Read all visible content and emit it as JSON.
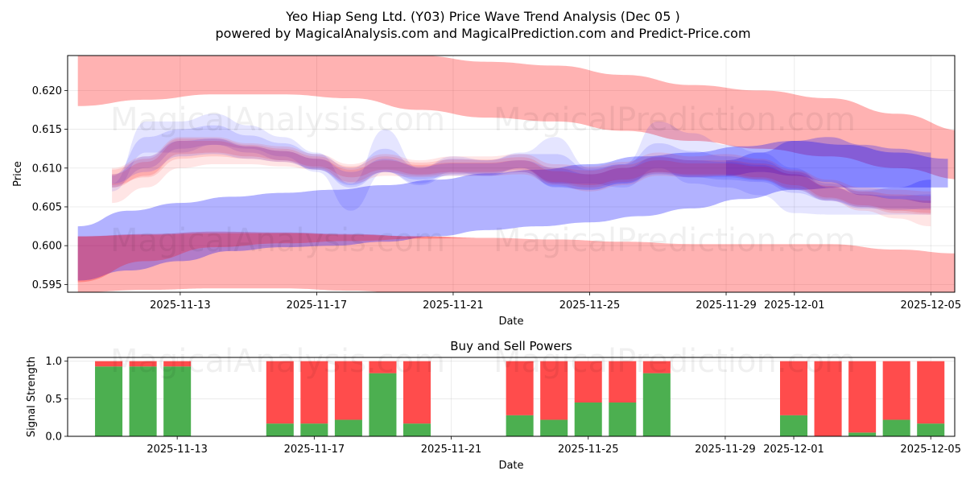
{
  "title_line1": "Yeo Hiap Seng Ltd. (Y03) Price Wave Trend Analysis (Dec 05 )",
  "title_line2": "powered by MagicalAnalysis.com and MagicalPrediction.com and Predict-Price.com",
  "watermarks": [
    "MagicalAnalysis.com",
    "MagicalPrediction.com"
  ],
  "colors": {
    "red": "#ff0000",
    "blue": "#0000ff",
    "buy": "#4caf50",
    "sell": "#ff4c4c"
  },
  "chart_data": [
    {
      "type": "area",
      "title": "",
      "xlabel": "Date",
      "ylabel": "Price",
      "x_range": [
        -1.3,
        24.7
      ],
      "ylim": [
        0.594,
        0.6245
      ],
      "x_ticks": [
        {
          "pos": 2,
          "label": "2025-11-13"
        },
        {
          "pos": 6,
          "label": "2025-11-17"
        },
        {
          "pos": 10,
          "label": "2025-11-21"
        },
        {
          "pos": 14,
          "label": "2025-11-25"
        },
        {
          "pos": 18,
          "label": "2025-11-29"
        },
        {
          "pos": 20,
          "label": "2025-12-01"
        },
        {
          "pos": 24,
          "label": "2025-12-05"
        }
      ],
      "y_ticks": [
        0.595,
        0.6,
        0.605,
        0.61,
        0.615,
        0.62
      ],
      "y_tick_labels": [
        "0.595",
        "0.600",
        "0.605",
        "0.610",
        "0.615",
        "0.620"
      ],
      "grid": true,
      "bands": [
        {
          "color": "red",
          "opacity": 0.3,
          "x": [
            -1,
            1,
            3,
            5,
            7,
            9,
            11,
            13,
            15,
            17,
            19,
            21,
            23,
            25
          ],
          "lower": [
            0.618,
            0.6188,
            0.6195,
            0.6195,
            0.619,
            0.6175,
            0.6165,
            0.616,
            0.6148,
            0.6135,
            0.6125,
            0.6115,
            0.61,
            0.6085
          ],
          "upper": [
            0.6255,
            0.6255,
            0.6255,
            0.6255,
            0.6252,
            0.6245,
            0.6237,
            0.6232,
            0.622,
            0.6207,
            0.62,
            0.619,
            0.617,
            0.6148
          ]
        },
        {
          "color": "red",
          "opacity": 0.3,
          "x": [
            -1,
            1,
            3,
            5,
            7,
            9,
            11,
            13,
            15,
            17,
            19,
            21,
            23,
            24.8
          ],
          "lower": [
            0.594,
            0.5943,
            0.5945,
            0.5945,
            0.5942,
            0.5937,
            0.5935,
            0.5935,
            0.5935,
            0.5935,
            0.5935,
            0.5935,
            0.5935,
            0.5935
          ],
          "upper": [
            0.6012,
            0.6015,
            0.6018,
            0.6017,
            0.6015,
            0.6012,
            0.601,
            0.6008,
            0.6005,
            0.6002,
            0.6002,
            0.6002,
            0.5995,
            0.599
          ]
        },
        {
          "color": "blue",
          "opacity": 0.3,
          "x": [
            -1,
            0.5,
            2,
            3.5,
            5,
            6.5,
            8,
            9.5,
            11,
            12.5,
            14,
            15.5,
            17,
            18.5,
            20,
            21.5,
            23,
            24.5
          ],
          "lower": [
            0.5955,
            0.5968,
            0.598,
            0.5993,
            0.5998,
            0.6,
            0.6005,
            0.6012,
            0.602,
            0.6025,
            0.603,
            0.6038,
            0.6048,
            0.606,
            0.6072,
            0.6075,
            0.6075,
            0.6075
          ],
          "upper": [
            0.6025,
            0.6045,
            0.6055,
            0.6063,
            0.6068,
            0.6072,
            0.6078,
            0.6085,
            0.6093,
            0.6098,
            0.6105,
            0.6115,
            0.612,
            0.6128,
            0.6135,
            0.613,
            0.612,
            0.6112
          ]
        },
        {
          "color": "red",
          "opacity": 0.25,
          "x": [
            -1,
            1,
            3,
            5,
            7,
            9,
            11
          ],
          "lower": [
            0.5953,
            0.598,
            0.5998,
            0.6003,
            0.6006,
            0.6009,
            0.601
          ],
          "upper": [
            0.6012,
            0.6014,
            0.6016,
            0.6016,
            0.6014,
            0.6012,
            0.601
          ]
        },
        {
          "color": "blue",
          "opacity": 0.25,
          "x": [
            18,
            19,
            20,
            21,
            22,
            23,
            24
          ],
          "lower": [
            0.609,
            0.6095,
            0.609,
            0.6082,
            0.6065,
            0.606,
            0.6055
          ],
          "upper": [
            0.611,
            0.612,
            0.6135,
            0.614,
            0.613,
            0.6125,
            0.612
          ]
        }
      ],
      "waves": [
        {
          "color": "blue",
          "opacity": 0.1,
          "x": [
            0,
            1,
            2,
            3,
            4,
            5,
            6,
            7,
            8,
            9,
            10,
            11,
            12,
            13,
            14,
            15,
            16,
            17,
            18,
            19,
            20,
            21,
            22,
            23,
            24
          ],
          "lower": [
            0.607,
            0.612,
            0.612,
            0.613,
            0.6125,
            0.6115,
            0.6095,
            0.6045,
            0.6095,
            0.608,
            0.6095,
            0.609,
            0.61,
            0.608,
            0.608,
            0.6075,
            0.61,
            0.608,
            0.6075,
            0.6065,
            0.6042,
            0.604,
            0.604,
            0.604,
            0.604
          ],
          "upper": [
            0.608,
            0.616,
            0.616,
            0.617,
            0.6155,
            0.614,
            0.612,
            0.608,
            0.615,
            0.61,
            0.6115,
            0.611,
            0.612,
            0.614,
            0.61,
            0.6105,
            0.616,
            0.6145,
            0.613,
            0.612,
            0.61,
            0.6075,
            0.607,
            0.6075,
            0.6085
          ]
        },
        {
          "color": "blue",
          "opacity": 0.12,
          "x": [
            0,
            1,
            2,
            3,
            4,
            5,
            6,
            7,
            8,
            9,
            10,
            11,
            12,
            13,
            14,
            15,
            16,
            17,
            18,
            19,
            20,
            21,
            22,
            23,
            24
          ],
          "lower": [
            0.6075,
            0.61,
            0.6125,
            0.613,
            0.612,
            0.611,
            0.6098,
            0.6075,
            0.6095,
            0.6078,
            0.6092,
            0.6092,
            0.61,
            0.6075,
            0.6072,
            0.608,
            0.6095,
            0.6088,
            0.6085,
            0.6082,
            0.6068,
            0.6058,
            0.605,
            0.6048,
            0.6046
          ],
          "upper": [
            0.609,
            0.614,
            0.615,
            0.6155,
            0.6142,
            0.6132,
            0.6118,
            0.61,
            0.6125,
            0.61,
            0.6112,
            0.611,
            0.6118,
            0.6118,
            0.6098,
            0.6105,
            0.6132,
            0.6122,
            0.6115,
            0.611,
            0.6095,
            0.608,
            0.6072,
            0.6075,
            0.6085
          ]
        },
        {
          "color": "red",
          "opacity": 0.1,
          "x": [
            0,
            1,
            2,
            3,
            4,
            5,
            6,
            7,
            8,
            9,
            10,
            11,
            12,
            13,
            14,
            15,
            16,
            17,
            18,
            19,
            20,
            21,
            22,
            23,
            24
          ],
          "lower": [
            0.6055,
            0.6075,
            0.61,
            0.6105,
            0.6105,
            0.6102,
            0.6098,
            0.608,
            0.609,
            0.6088,
            0.609,
            0.609,
            0.6092,
            0.6078,
            0.607,
            0.6078,
            0.609,
            0.6088,
            0.609,
            0.6085,
            0.6072,
            0.6058,
            0.6045,
            0.6035,
            0.6025
          ],
          "upper": [
            0.61,
            0.6115,
            0.614,
            0.614,
            0.6132,
            0.6128,
            0.6118,
            0.6105,
            0.6118,
            0.611,
            0.6115,
            0.6115,
            0.6118,
            0.6105,
            0.6102,
            0.6108,
            0.612,
            0.6115,
            0.6118,
            0.6112,
            0.6098,
            0.6085,
            0.6075,
            0.6072,
            0.607
          ]
        },
        {
          "color": "red",
          "opacity": 0.14,
          "x": [
            0,
            1,
            2,
            3,
            4,
            5,
            6,
            7,
            8,
            9,
            10,
            11,
            12,
            13,
            14,
            15,
            16,
            17,
            18,
            19,
            20,
            21,
            22,
            23,
            24
          ],
          "lower": [
            0.6075,
            0.609,
            0.6118,
            0.612,
            0.6115,
            0.611,
            0.6102,
            0.6088,
            0.6098,
            0.6092,
            0.6095,
            0.6095,
            0.6098,
            0.6082,
            0.6078,
            0.6085,
            0.6095,
            0.6092,
            0.6092,
            0.6088,
            0.6078,
            0.6062,
            0.6052,
            0.6045,
            0.6042
          ],
          "upper": [
            0.6092,
            0.6108,
            0.6135,
            0.6135,
            0.6128,
            0.6122,
            0.6112,
            0.6098,
            0.611,
            0.6104,
            0.6107,
            0.6107,
            0.611,
            0.6096,
            0.6092,
            0.61,
            0.611,
            0.6106,
            0.6106,
            0.6102,
            0.6092,
            0.6077,
            0.6066,
            0.606,
            0.6058
          ]
        },
        {
          "color": "red",
          "opacity": 0.12,
          "x": [
            0,
            1,
            2,
            3,
            4,
            5,
            6,
            7,
            8,
            9,
            10,
            11,
            12,
            13,
            14,
            15,
            16,
            17,
            18,
            19,
            20,
            21,
            22,
            23,
            24
          ],
          "lower": [
            0.6078,
            0.6088,
            0.6112,
            0.6115,
            0.6112,
            0.6108,
            0.61,
            0.6082,
            0.6095,
            0.609,
            0.6093,
            0.6093,
            0.6095,
            0.608,
            0.6075,
            0.6082,
            0.6093,
            0.609,
            0.609,
            0.6086,
            0.6074,
            0.606,
            0.605,
            0.6042,
            0.604
          ],
          "upper": [
            0.6098,
            0.6112,
            0.6138,
            0.6138,
            0.613,
            0.6125,
            0.6115,
            0.6102,
            0.6115,
            0.6107,
            0.6111,
            0.6111,
            0.6114,
            0.61,
            0.6097,
            0.6104,
            0.6114,
            0.611,
            0.611,
            0.6106,
            0.6096,
            0.6082,
            0.607,
            0.6066,
            0.6064
          ]
        },
        {
          "color": "blue",
          "opacity": 0.12,
          "x": [
            0,
            1,
            2,
            3,
            4,
            5,
            6,
            7,
            8,
            9,
            10,
            11,
            12,
            13,
            14,
            15,
            16,
            17,
            18,
            19,
            20,
            21,
            22,
            23,
            24
          ],
          "lower": [
            0.608,
            0.6095,
            0.6115,
            0.6118,
            0.6112,
            0.6108,
            0.6098,
            0.6078,
            0.6095,
            0.6085,
            0.609,
            0.609,
            0.6095,
            0.6076,
            0.6072,
            0.608,
            0.6092,
            0.6088,
            0.6088,
            0.6084,
            0.6072,
            0.6058,
            0.6048,
            0.6046,
            0.6048
          ],
          "upper": [
            0.6092,
            0.6115,
            0.6135,
            0.6138,
            0.6128,
            0.6122,
            0.6112,
            0.6095,
            0.6112,
            0.6102,
            0.6106,
            0.6106,
            0.611,
            0.61,
            0.6092,
            0.61,
            0.6115,
            0.611,
            0.6108,
            0.6104,
            0.6092,
            0.6076,
            0.6066,
            0.6064,
            0.6066
          ]
        }
      ]
    },
    {
      "type": "bar",
      "title": "Buy and Sell Powers",
      "xlabel": "Date",
      "ylabel": "Signal Strength",
      "x_range": [
        -1.2,
        24.7
      ],
      "ylim": [
        0,
        1.05
      ],
      "x_ticks": [
        {
          "pos": 2,
          "label": "2025-11-13"
        },
        {
          "pos": 6,
          "label": "2025-11-17"
        },
        {
          "pos": 10,
          "label": "2025-11-21"
        },
        {
          "pos": 14,
          "label": "2025-11-25"
        },
        {
          "pos": 18,
          "label": "2025-11-29"
        },
        {
          "pos": 20,
          "label": "2025-12-01"
        },
        {
          "pos": 24,
          "label": "2025-12-05"
        }
      ],
      "y_ticks": [
        0.0,
        0.5,
        1.0
      ],
      "y_tick_labels": [
        "0.0",
        "0.5",
        "1.0"
      ],
      "grid": true,
      "x": [
        0,
        1,
        2,
        5,
        6,
        7,
        8,
        9,
        12,
        13,
        14,
        15,
        16,
        20,
        21,
        22,
        23,
        24
      ],
      "series": [
        {
          "name": "Buy",
          "color": "buy",
          "values": [
            0.93,
            0.93,
            0.93,
            0.17,
            0.17,
            0.22,
            0.84,
            0.17,
            0.28,
            0.22,
            0.45,
            0.45,
            0.84,
            0.28,
            0.0,
            0.05,
            0.22,
            0.17
          ]
        },
        {
          "name": "Sell",
          "color": "sell",
          "values": [
            0.07,
            0.07,
            0.07,
            0.83,
            0.83,
            0.78,
            0.16,
            0.83,
            0.72,
            0.78,
            0.55,
            0.55,
            0.16,
            0.72,
            1.0,
            0.95,
            0.78,
            0.83
          ]
        }
      ]
    }
  ]
}
